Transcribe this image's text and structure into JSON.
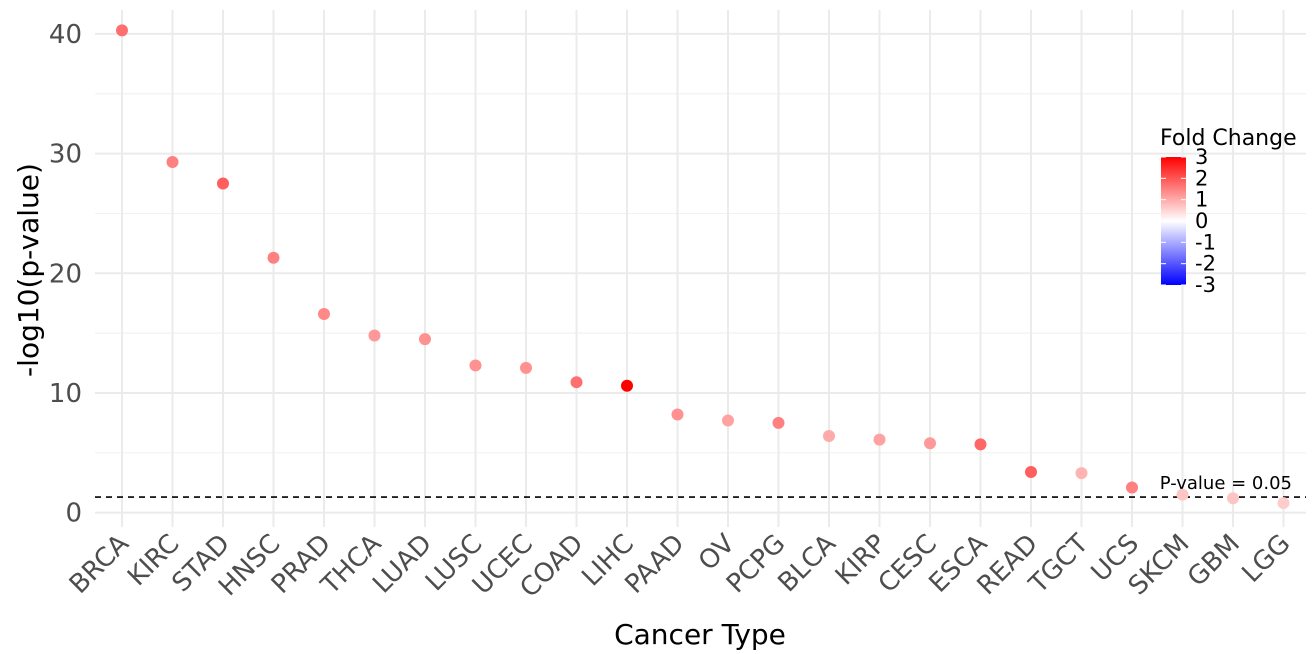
{
  "chart_data": {
    "type": "scatter",
    "title": "",
    "xlabel": "Cancer Type",
    "ylabel": "-log10(p-value)",
    "categories": [
      "BRCA",
      "KIRC",
      "STAD",
      "HNSC",
      "PRAD",
      "THCA",
      "LUAD",
      "LUSC",
      "UCEC",
      "COAD",
      "LIHC",
      "PAAD",
      "OV",
      "PCPG",
      "BLCA",
      "KIRP",
      "CESC",
      "ESCA",
      "READ",
      "TGCT",
      "UCS",
      "SKCM",
      "GBM",
      "LGG"
    ],
    "y": [
      40.3,
      29.3,
      27.5,
      21.3,
      16.6,
      14.8,
      14.5,
      12.3,
      12.1,
      10.9,
      10.6,
      8.2,
      7.7,
      7.5,
      6.4,
      6.1,
      5.8,
      5.7,
      3.4,
      3.3,
      2.1,
      1.5,
      1.2,
      0.8
    ],
    "fold_change": [
      1.7,
      1.5,
      1.9,
      1.5,
      1.4,
      1.2,
      1.3,
      1.3,
      1.3,
      1.7,
      3.0,
      1.3,
      1.1,
      1.5,
      1.0,
      1.1,
      1.2,
      1.8,
      1.9,
      0.9,
      1.5,
      0.7,
      0.7,
      0.6
    ],
    "ylim": [
      -1.2,
      42
    ],
    "yticks": [
      0,
      10,
      20,
      30,
      40
    ],
    "grid": true,
    "reference_line": {
      "y": 1.3,
      "label": "P-value = 0.05",
      "style": "dashed"
    },
    "legend": {
      "title": "Fold Change",
      "placement": "right",
      "labels": [
        "3",
        "2",
        "1",
        "0",
        "-1",
        "-2",
        "-3"
      ],
      "range": [
        -3,
        3
      ],
      "low_color": "#0000ff",
      "mid_color": "#ffffff",
      "high_color": "#ff0000"
    }
  }
}
